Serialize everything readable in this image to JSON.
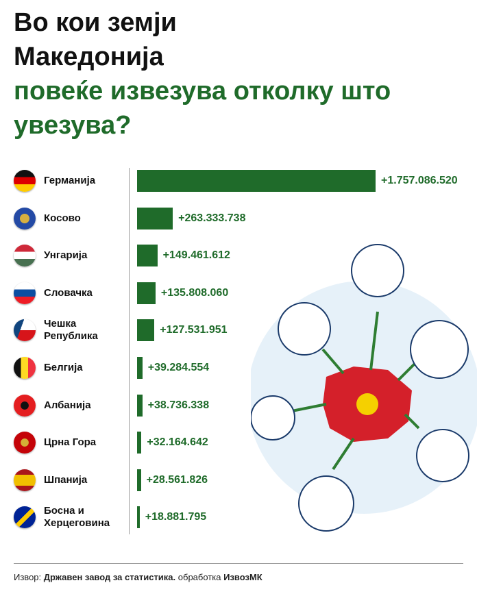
{
  "chart_data": {
    "type": "bar",
    "orientation": "horizontal",
    "title": "Во кои земји Македонија",
    "subtitle": "повеќе извезува отколку што увезува?",
    "categories": [
      "Германија",
      "Косово",
      "Унгарија",
      "Словачка",
      "Чешка Република",
      "Белгија",
      "Албанија",
      "Црна Гора",
      "Шпанија",
      "Босна и Херцеговина"
    ],
    "values": [
      1757086520,
      263333738,
      149461612,
      135808060,
      127531951,
      39284554,
      38736338,
      32164642,
      28561826,
      18881795
    ],
    "value_labels": [
      "+1.757.086.520",
      "+263.333.738",
      "+149.461.612",
      "+135.808.060",
      "+127.531.951",
      "+39.284.554",
      "+38.736.338",
      "+32.164.642",
      "+28.561.826",
      "+18.881.795"
    ],
    "color": "#1f6b2a"
  },
  "footer": {
    "source_label": "Извор:",
    "source": "Државен завод за статистика.",
    "credit_label": "обработка",
    "credit": "ИзвозМК"
  }
}
